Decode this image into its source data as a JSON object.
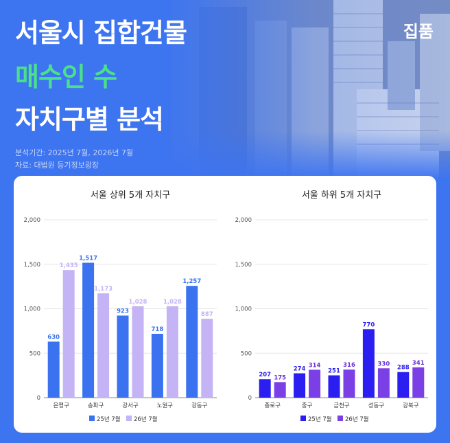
{
  "header": {
    "title_line1": "서울시 집합건물",
    "title_line2": "매수인 수",
    "title_line3": "자치구별 분석",
    "brand": "집품",
    "period": "분석기간: 2025년 7월, 2026년 7월",
    "source": "자료: 대법원 등기정보광장"
  },
  "colors": {
    "left_2025": "#3a72f0",
    "left_2026": "#c4b3f5",
    "right_2025": "#2a1ff0",
    "right_2026": "#7b3fe6",
    "title_accent": "#4be08a"
  },
  "chart_data": [
    {
      "type": "bar",
      "title": "서울 상위 5개 자치구",
      "categories": [
        "은평구",
        "송파구",
        "강서구",
        "노원구",
        "강동구"
      ],
      "series": [
        {
          "name": "25년 7월",
          "values": [
            630,
            1517,
            923,
            718,
            1257
          ]
        },
        {
          "name": "26년 7월",
          "values": [
            1435,
            1173,
            1028,
            1028,
            887
          ]
        }
      ],
      "ylim": [
        0,
        2000
      ],
      "yticks": [
        0,
        500,
        1000,
        1500,
        2000
      ],
      "ytick_labels": [
        "0",
        "500",
        "1,000",
        "1,500",
        "2,000"
      ],
      "value_labels": [
        [
          "630",
          "1,517",
          "923",
          "718",
          "1,257"
        ],
        [
          "1,435",
          "1,173",
          "1,028",
          "1,028",
          "887"
        ]
      ],
      "grid": true,
      "legend": "bottom"
    },
    {
      "type": "bar",
      "title": "서울 하위 5개 자치구",
      "categories": [
        "종로구",
        "중구",
        "금천구",
        "성동구",
        "강북구"
      ],
      "series": [
        {
          "name": "25년 7월",
          "values": [
            207,
            274,
            251,
            770,
            288
          ]
        },
        {
          "name": "26년 7월",
          "values": [
            175,
            314,
            316,
            330,
            341
          ]
        }
      ],
      "ylim": [
        0,
        2000
      ],
      "yticks": [
        0,
        500,
        1000,
        1500,
        2000
      ],
      "ytick_labels": [
        "0",
        "500",
        "1,000",
        "1,500",
        "2,000"
      ],
      "value_labels": [
        [
          "207",
          "274",
          "251",
          "770",
          "288"
        ],
        [
          "175",
          "314",
          "316",
          "330",
          "341"
        ]
      ],
      "grid": true,
      "legend": "bottom"
    }
  ]
}
